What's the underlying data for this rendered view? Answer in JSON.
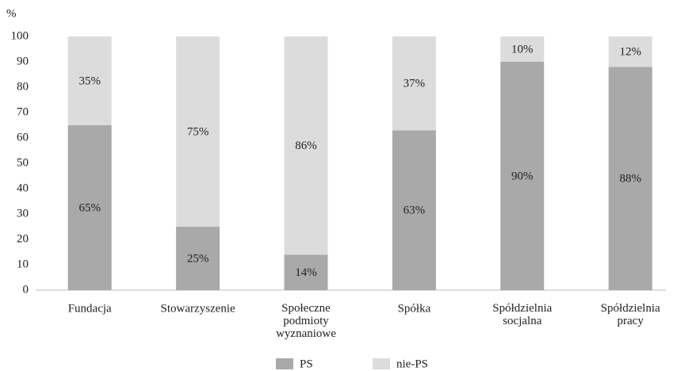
{
  "chart_data": {
    "type": "stacked_bar",
    "y_label": "%",
    "categories": [
      "Fundacja",
      "Stowarzyszenie",
      "Społeczne podmioty wyznaniowe",
      "Spółka",
      "Spółdzielnia socjalna",
      "Spółdzielnia pracy"
    ],
    "series": [
      {
        "name": "PS",
        "color": "#a9a9aa",
        "values": [
          65,
          25,
          14,
          63,
          90,
          88
        ],
        "value_labels": [
          "65%",
          "25%",
          "14%",
          "63%",
          "90%",
          "88%"
        ]
      },
      {
        "name": "nie-PS",
        "color": "#dcdcdd",
        "values": [
          35,
          75,
          86,
          37,
          10,
          12
        ],
        "value_labels": [
          "35%",
          "75%",
          "86%",
          "37%",
          "10%",
          "12%"
        ]
      }
    ],
    "ylim": [
      0,
      100
    ],
    "yticks": [
      0,
      10,
      20,
      30,
      40,
      50,
      60,
      70,
      80,
      90,
      100
    ],
    "legend": "bottom"
  }
}
